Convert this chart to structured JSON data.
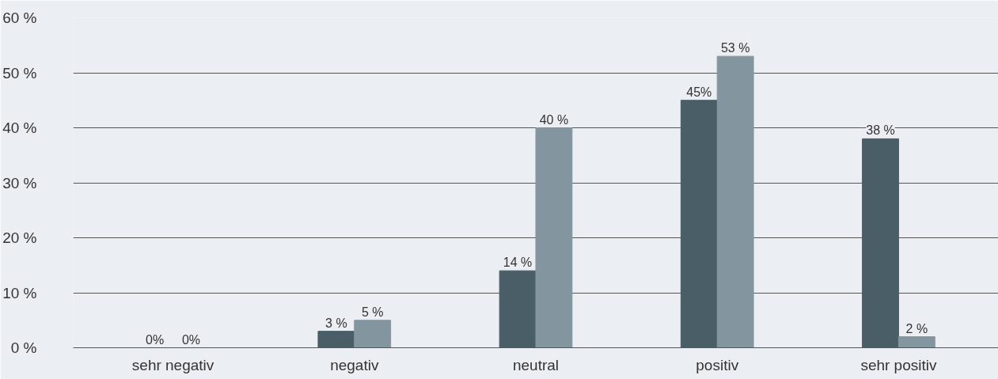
{
  "chart_data": {
    "type": "bar",
    "categories": [
      "sehr negativ",
      "negativ",
      "neutral",
      "positiv",
      "sehr positiv"
    ],
    "series": [
      {
        "color": "#4a5e68",
        "values": [
          0,
          3,
          14,
          45,
          38
        ],
        "value_labels": [
          "0%",
          "3 %",
          "14 %",
          "45%",
          "38 %"
        ]
      },
      {
        "color": "#8396a0",
        "values": [
          0,
          5,
          40,
          53,
          2
        ],
        "value_labels": [
          "0%",
          "5 %",
          "40 %",
          "53 %",
          "2 %"
        ]
      }
    ],
    "ylim": [
      0,
      60
    ],
    "yticks": [
      {
        "value": 0,
        "label": "0 %"
      },
      {
        "value": 10,
        "label": "10 %"
      },
      {
        "value": 20,
        "label": "20 %"
      },
      {
        "value": 30,
        "label": "30 %"
      },
      {
        "value": 40,
        "label": "40 %"
      },
      {
        "value": 50,
        "label": "50 %"
      },
      {
        "value": 60,
        "label": "60 %"
      }
    ],
    "grid": "y"
  }
}
